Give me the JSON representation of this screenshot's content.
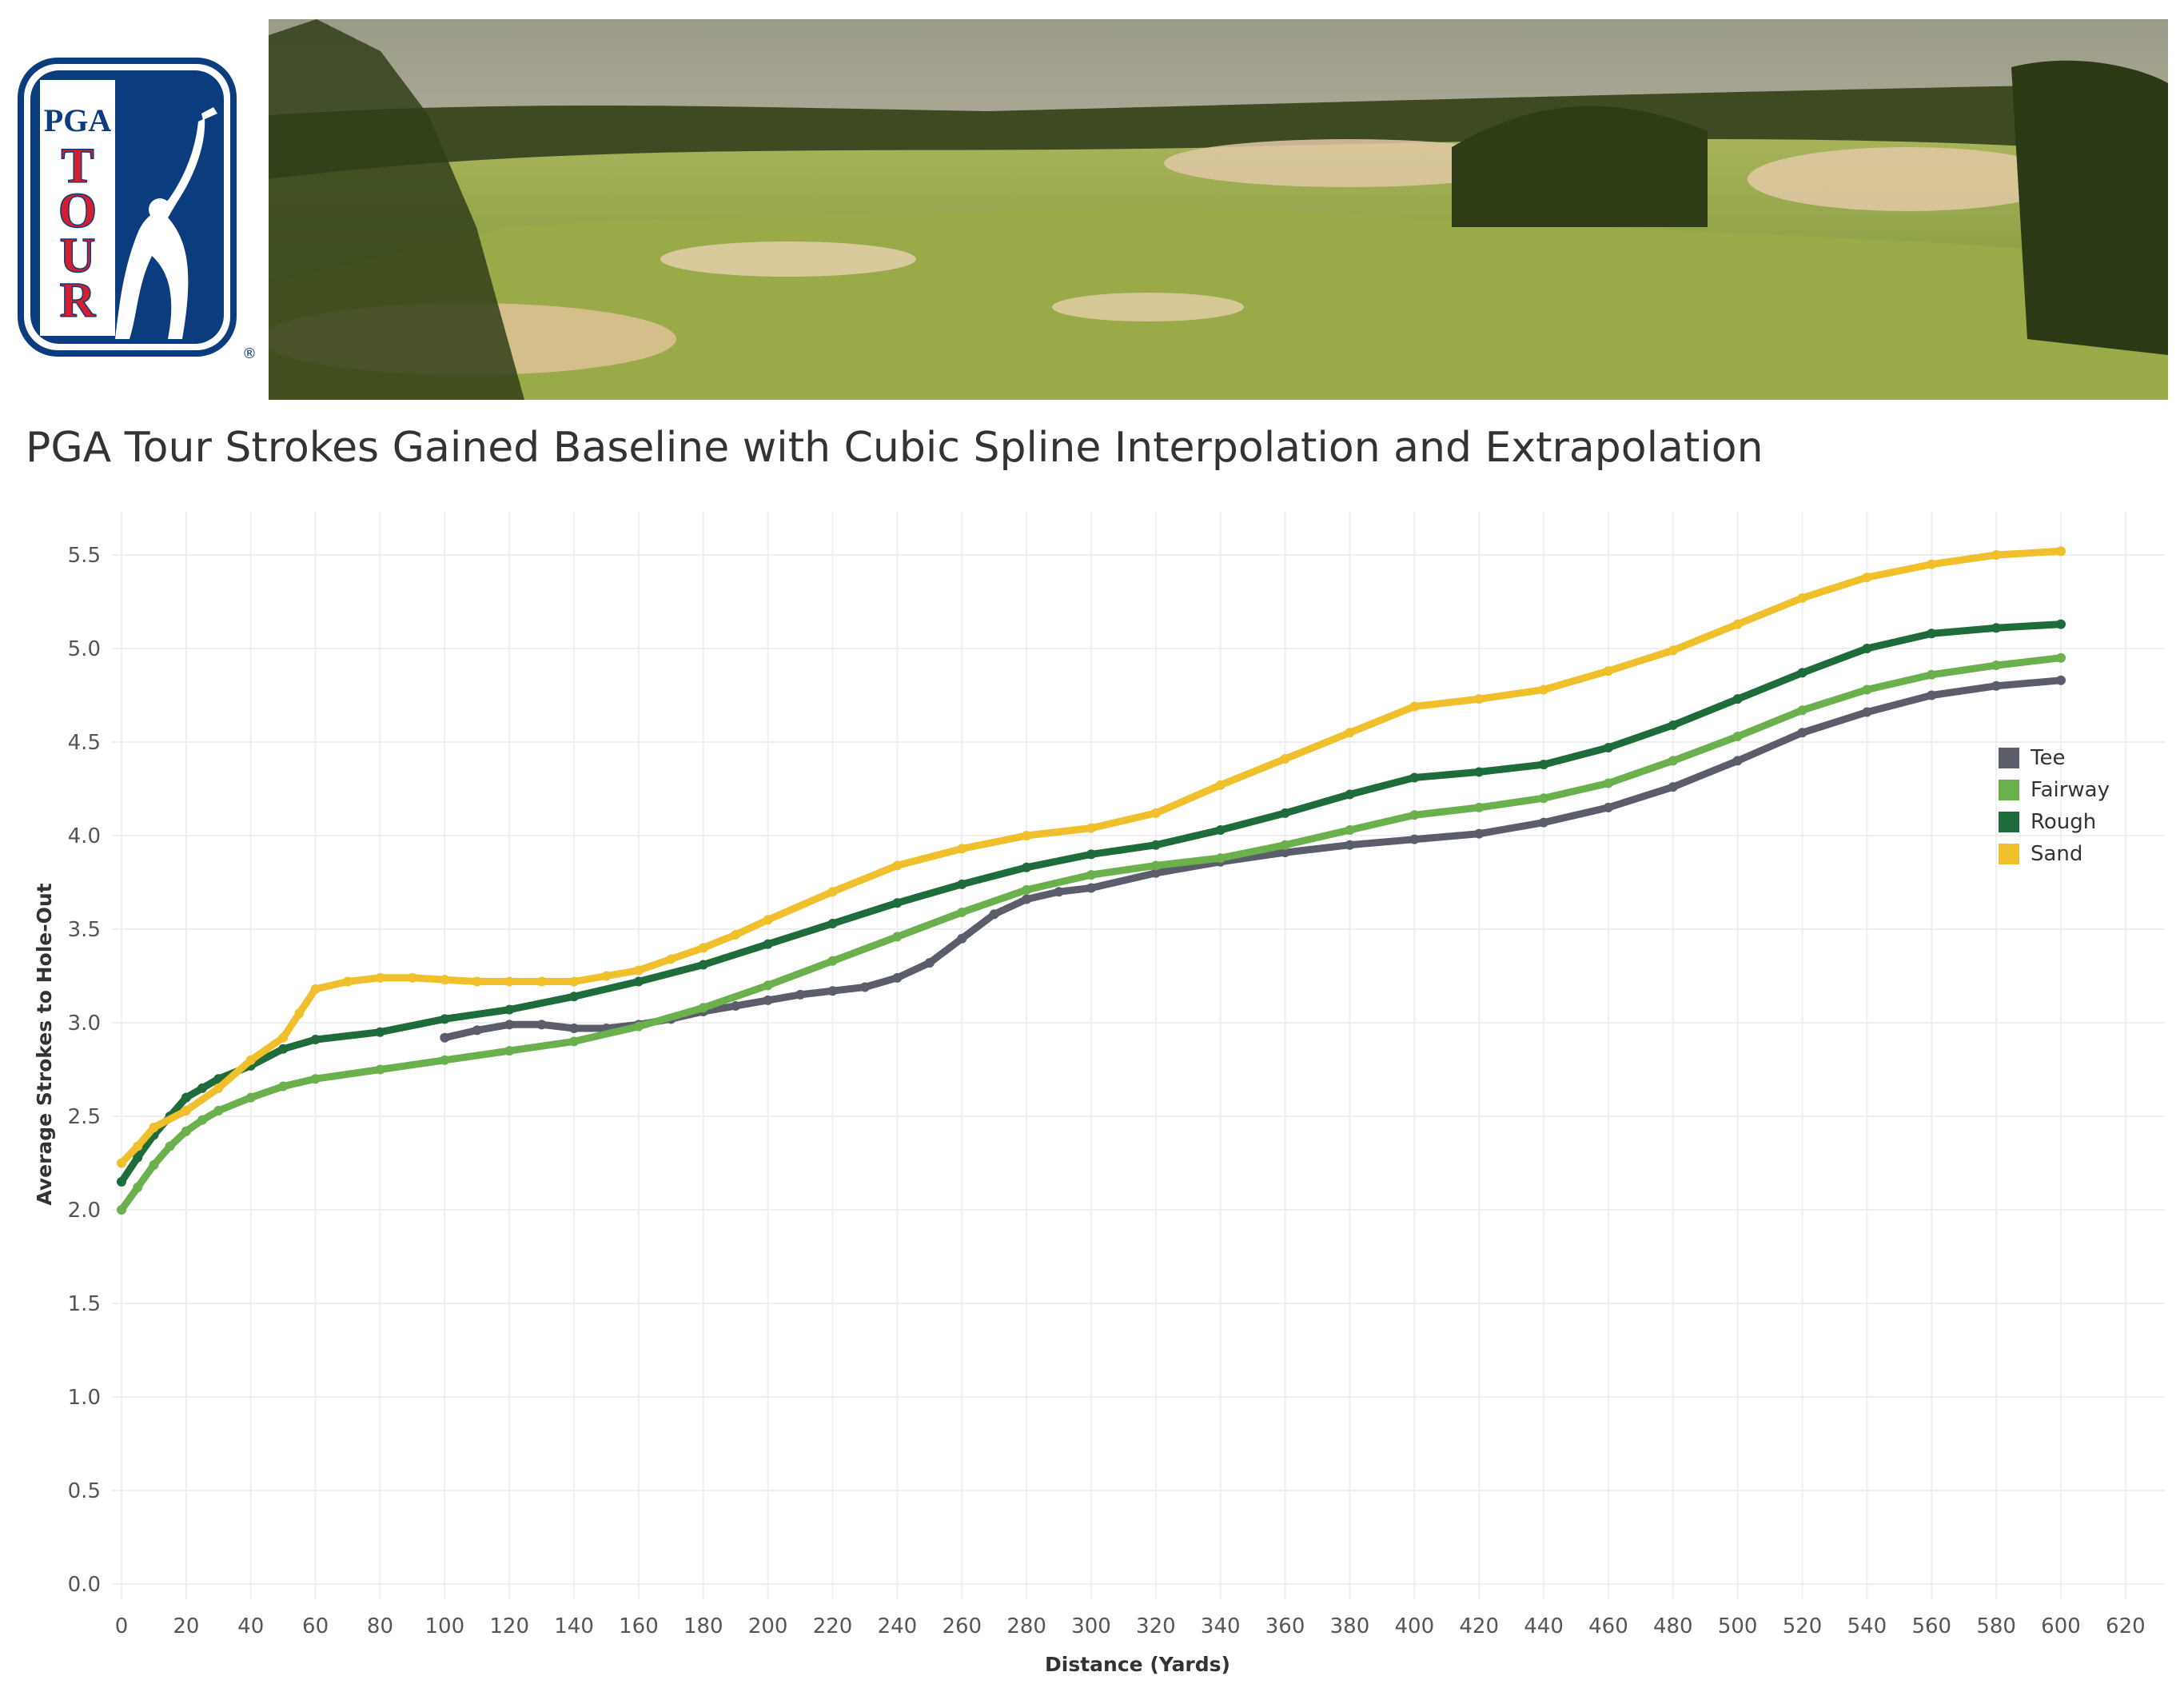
{
  "header": {
    "logo_text": {
      "top": "PGA",
      "bottom": "TOUR",
      "registered": "®"
    },
    "banner_image": "golf-course-landscape"
  },
  "chart_data": {
    "type": "line",
    "title": "PGA Tour Strokes Gained Baseline with Cubic Spline Interpolation and Extrapolation",
    "xlabel": "Distance (Yards)",
    "ylabel": "Average Strokes to Hole-Out",
    "xlim": [
      0,
      620
    ],
    "ylim": [
      0,
      5.5
    ],
    "x_ticks": [
      0,
      20,
      40,
      60,
      80,
      100,
      120,
      140,
      160,
      180,
      200,
      220,
      240,
      260,
      280,
      300,
      320,
      340,
      360,
      380,
      400,
      420,
      440,
      460,
      480,
      500,
      520,
      540,
      560,
      580,
      600,
      620
    ],
    "y_ticks": [
      "0.0",
      "0.5",
      "1.0",
      "1.5",
      "2.0",
      "2.5",
      "3.0",
      "3.5",
      "4.0",
      "4.5",
      "5.0",
      "5.5"
    ],
    "grid": true,
    "legend_position": "right",
    "series": [
      {
        "name": "Tee",
        "color": "#5b5d6b",
        "x": [
          100,
          110,
          120,
          130,
          140,
          150,
          160,
          170,
          180,
          190,
          200,
          210,
          220,
          230,
          240,
          250,
          260,
          270,
          280,
          290,
          300,
          320,
          340,
          360,
          380,
          400,
          420,
          440,
          460,
          480,
          500,
          520,
          540,
          560,
          580,
          600
        ],
        "y": [
          2.92,
          2.96,
          2.99,
          2.99,
          2.97,
          2.97,
          2.99,
          3.02,
          3.06,
          3.09,
          3.12,
          3.15,
          3.17,
          3.19,
          3.24,
          3.32,
          3.45,
          3.58,
          3.66,
          3.7,
          3.72,
          3.8,
          3.86,
          3.91,
          3.95,
          3.98,
          4.01,
          4.07,
          4.15,
          4.26,
          4.4,
          4.55,
          4.66,
          4.75,
          4.8,
          4.83
        ]
      },
      {
        "name": "Fairway",
        "color": "#6ab04c",
        "x": [
          0,
          5,
          10,
          15,
          20,
          25,
          30,
          40,
          50,
          60,
          80,
          100,
          120,
          140,
          160,
          180,
          200,
          220,
          240,
          260,
          280,
          300,
          320,
          340,
          360,
          380,
          400,
          420,
          440,
          460,
          480,
          500,
          520,
          540,
          560,
          580,
          600
        ],
        "y": [
          2.0,
          2.12,
          2.24,
          2.34,
          2.42,
          2.48,
          2.53,
          2.6,
          2.66,
          2.7,
          2.75,
          2.8,
          2.85,
          2.9,
          2.98,
          3.08,
          3.2,
          3.33,
          3.46,
          3.59,
          3.71,
          3.79,
          3.84,
          3.88,
          3.95,
          4.03,
          4.11,
          4.15,
          4.2,
          4.28,
          4.4,
          4.53,
          4.67,
          4.78,
          4.86,
          4.91,
          4.95
        ]
      },
      {
        "name": "Rough",
        "color": "#1e6b3c",
        "x": [
          0,
          5,
          10,
          15,
          20,
          25,
          30,
          40,
          50,
          60,
          80,
          100,
          120,
          140,
          160,
          180,
          200,
          220,
          240,
          260,
          280,
          300,
          320,
          340,
          360,
          380,
          400,
          420,
          440,
          460,
          480,
          500,
          520,
          540,
          560,
          580,
          600
        ],
        "y": [
          2.15,
          2.28,
          2.4,
          2.5,
          2.6,
          2.65,
          2.7,
          2.77,
          2.86,
          2.91,
          2.95,
          3.02,
          3.07,
          3.14,
          3.22,
          3.31,
          3.42,
          3.53,
          3.64,
          3.74,
          3.83,
          3.9,
          3.95,
          4.03,
          4.12,
          4.22,
          4.31,
          4.34,
          4.38,
          4.47,
          4.59,
          4.73,
          4.87,
          5.0,
          5.08,
          5.11,
          5.13
        ]
      },
      {
        "name": "Sand",
        "color": "#f0bf2c",
        "x": [
          0,
          5,
          10,
          20,
          30,
          40,
          50,
          55,
          60,
          70,
          80,
          90,
          100,
          110,
          120,
          130,
          140,
          150,
          160,
          170,
          180,
          190,
          200,
          220,
          240,
          260,
          280,
          300,
          320,
          340,
          360,
          380,
          400,
          420,
          440,
          460,
          480,
          500,
          520,
          540,
          560,
          580,
          600
        ],
        "y": [
          2.25,
          2.34,
          2.44,
          2.53,
          2.65,
          2.8,
          2.92,
          3.05,
          3.18,
          3.22,
          3.24,
          3.24,
          3.23,
          3.22,
          3.22,
          3.22,
          3.22,
          3.25,
          3.28,
          3.34,
          3.4,
          3.47,
          3.55,
          3.7,
          3.84,
          3.93,
          4.0,
          4.04,
          4.12,
          4.27,
          4.41,
          4.55,
          4.69,
          4.73,
          4.78,
          4.88,
          4.99,
          5.13,
          5.27,
          5.38,
          5.45,
          5.5,
          5.52
        ]
      }
    ]
  }
}
